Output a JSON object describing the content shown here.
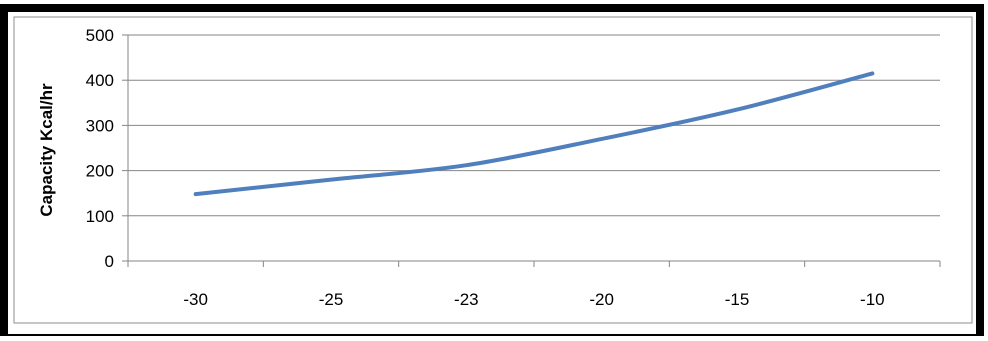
{
  "chart_data": {
    "type": "line",
    "title": "",
    "xlabel": "",
    "ylabel": "Capacity  Kcal/hr",
    "categories": [
      "-30",
      "-25",
      "-23",
      "-20",
      "-15",
      "-10"
    ],
    "series": [
      {
        "values": [
          148,
          180,
          212,
          270,
          335,
          415
        ]
      }
    ],
    "yticks": [
      "0",
      "100",
      "200",
      "300",
      "400",
      "500"
    ],
    "ylim": [
      0,
      500
    ],
    "grid": "horizontal",
    "legend": "none",
    "colors": {
      "line": "#4f7fbd",
      "grid": "#868686",
      "frame": "#000000"
    }
  }
}
